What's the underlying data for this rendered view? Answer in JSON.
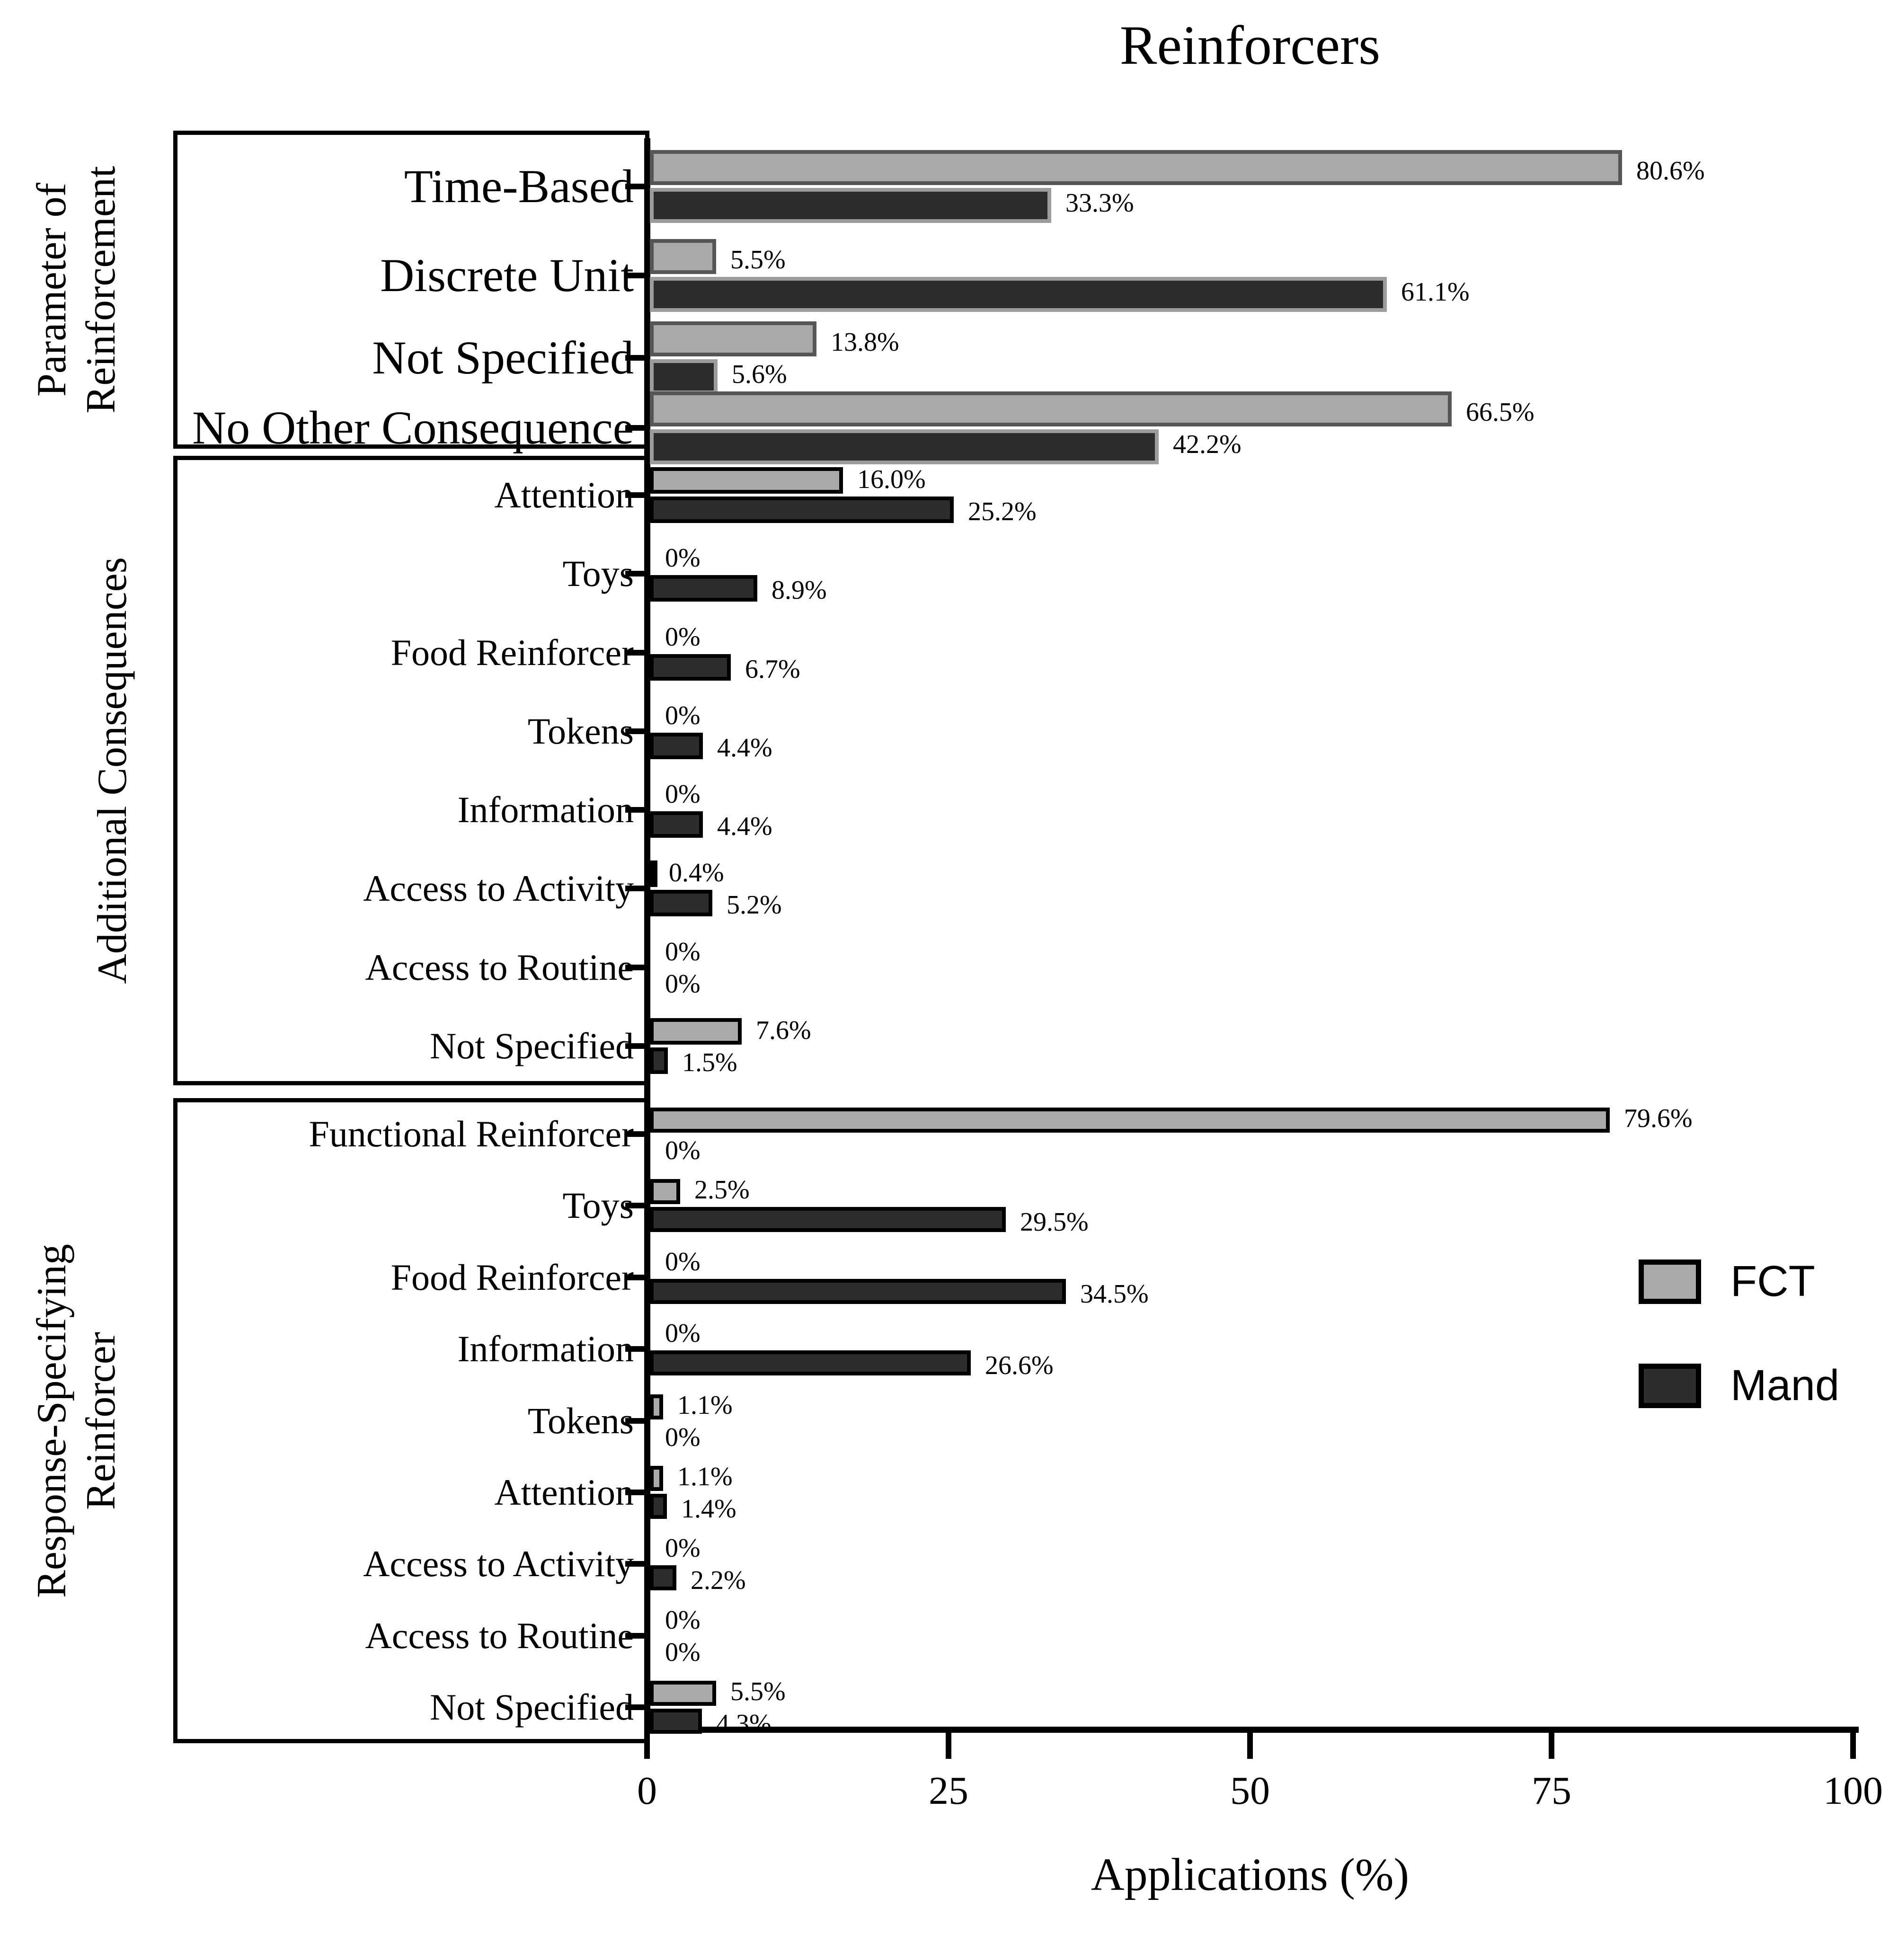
{
  "chart_data": {
    "type": "bar",
    "orientation": "horizontal",
    "title": "Reinforcers",
    "xlabel": "Applications (%)",
    "xlim": [
      0,
      100
    ],
    "x_ticks": [
      "0",
      "25",
      "50",
      "75",
      "100"
    ],
    "legend_position": "middle-right",
    "grid": false,
    "series_names": [
      "FCT",
      "Mand"
    ],
    "colors": {
      "fct_fill": "#a9a9a9",
      "mand_fill": "#2d2d2d",
      "group1_fct_border": "#565656",
      "group1_mand_border": "#9c9c9c",
      "default_border": "#000000"
    },
    "groups": [
      {
        "group_label": "Parameter of\nReinforcement",
        "rows": [
          {
            "category": "Time-Based",
            "fct": 80.6,
            "mand": 33.3,
            "fct_label": "80.6%",
            "mand_label": "33.3%"
          },
          {
            "category": "Discrete Unit",
            "fct": 5.5,
            "mand": 61.1,
            "fct_label": "5.5%",
            "mand_label": "61.1%"
          },
          {
            "category": "Not Specified",
            "fct": 13.8,
            "mand": 5.6,
            "fct_label": "13.8%",
            "mand_label": "5.6%"
          },
          {
            "category": "No Other Consequence",
            "fct": 66.5,
            "mand": 42.2,
            "fct_label": "66.5%",
            "mand_label": "42.2%"
          }
        ]
      },
      {
        "group_label": "Additional Consequences",
        "rows": [
          {
            "category": "Attention",
            "fct": 16.0,
            "mand": 25.2,
            "fct_label": "16.0%",
            "mand_label": "25.2%"
          },
          {
            "category": "Toys",
            "fct": 0,
            "mand": 8.9,
            "fct_label": "0%",
            "mand_label": "8.9%"
          },
          {
            "category": "Food Reinforcer",
            "fct": 0,
            "mand": 6.7,
            "fct_label": "0%",
            "mand_label": "6.7%"
          },
          {
            "category": "Tokens",
            "fct": 0,
            "mand": 4.4,
            "fct_label": "0%",
            "mand_label": "4.4%"
          },
          {
            "category": "Information",
            "fct": 0,
            "mand": 4.4,
            "fct_label": "0%",
            "mand_label": "4.4%"
          },
          {
            "category": "Access to Activity",
            "fct": 0.4,
            "mand": 5.2,
            "fct_label": "0.4%",
            "mand_label": "5.2%"
          },
          {
            "category": "Access to Routine",
            "fct": 0,
            "mand": 0,
            "fct_label": "0%",
            "mand_label": "0%"
          },
          {
            "category": "Not Specified",
            "fct": 7.6,
            "mand": 1.5,
            "fct_label": "7.6%",
            "mand_label": "1.5%"
          }
        ]
      },
      {
        "group_label": "Response-Specifying\nReinforcer",
        "rows": [
          {
            "category": "Functional Reinforcer",
            "fct": 79.6,
            "mand": 0,
            "fct_label": "79.6%",
            "mand_label": "0%"
          },
          {
            "category": "Toys",
            "fct": 2.5,
            "mand": 29.5,
            "fct_label": "2.5%",
            "mand_label": "29.5%"
          },
          {
            "category": "Food Reinforcer",
            "fct": 0,
            "mand": 34.5,
            "fct_label": "0%",
            "mand_label": "34.5%"
          },
          {
            "category": "Information",
            "fct": 0,
            "mand": 26.6,
            "fct_label": "0%",
            "mand_label": "26.6%"
          },
          {
            "category": "Tokens",
            "fct": 1.1,
            "mand": 0,
            "fct_label": "1.1%",
            "mand_label": "0%"
          },
          {
            "category": "Attention",
            "fct": 1.1,
            "mand": 1.4,
            "fct_label": "1.1%",
            "mand_label": "1.4%"
          },
          {
            "category": "Access to Activity",
            "fct": 0,
            "mand": 2.2,
            "fct_label": "0%",
            "mand_label": "2.2%"
          },
          {
            "category": "Access to Routine",
            "fct": 0,
            "mand": 0,
            "fct_label": "0%",
            "mand_label": "0%"
          },
          {
            "category": "Not Specified",
            "fct": 5.5,
            "mand": 4.3,
            "fct_label": "5.5%",
            "mand_label": "4.3%"
          }
        ]
      }
    ]
  },
  "legend": {
    "items": [
      {
        "label": "FCT"
      },
      {
        "label": "Mand"
      }
    ]
  }
}
